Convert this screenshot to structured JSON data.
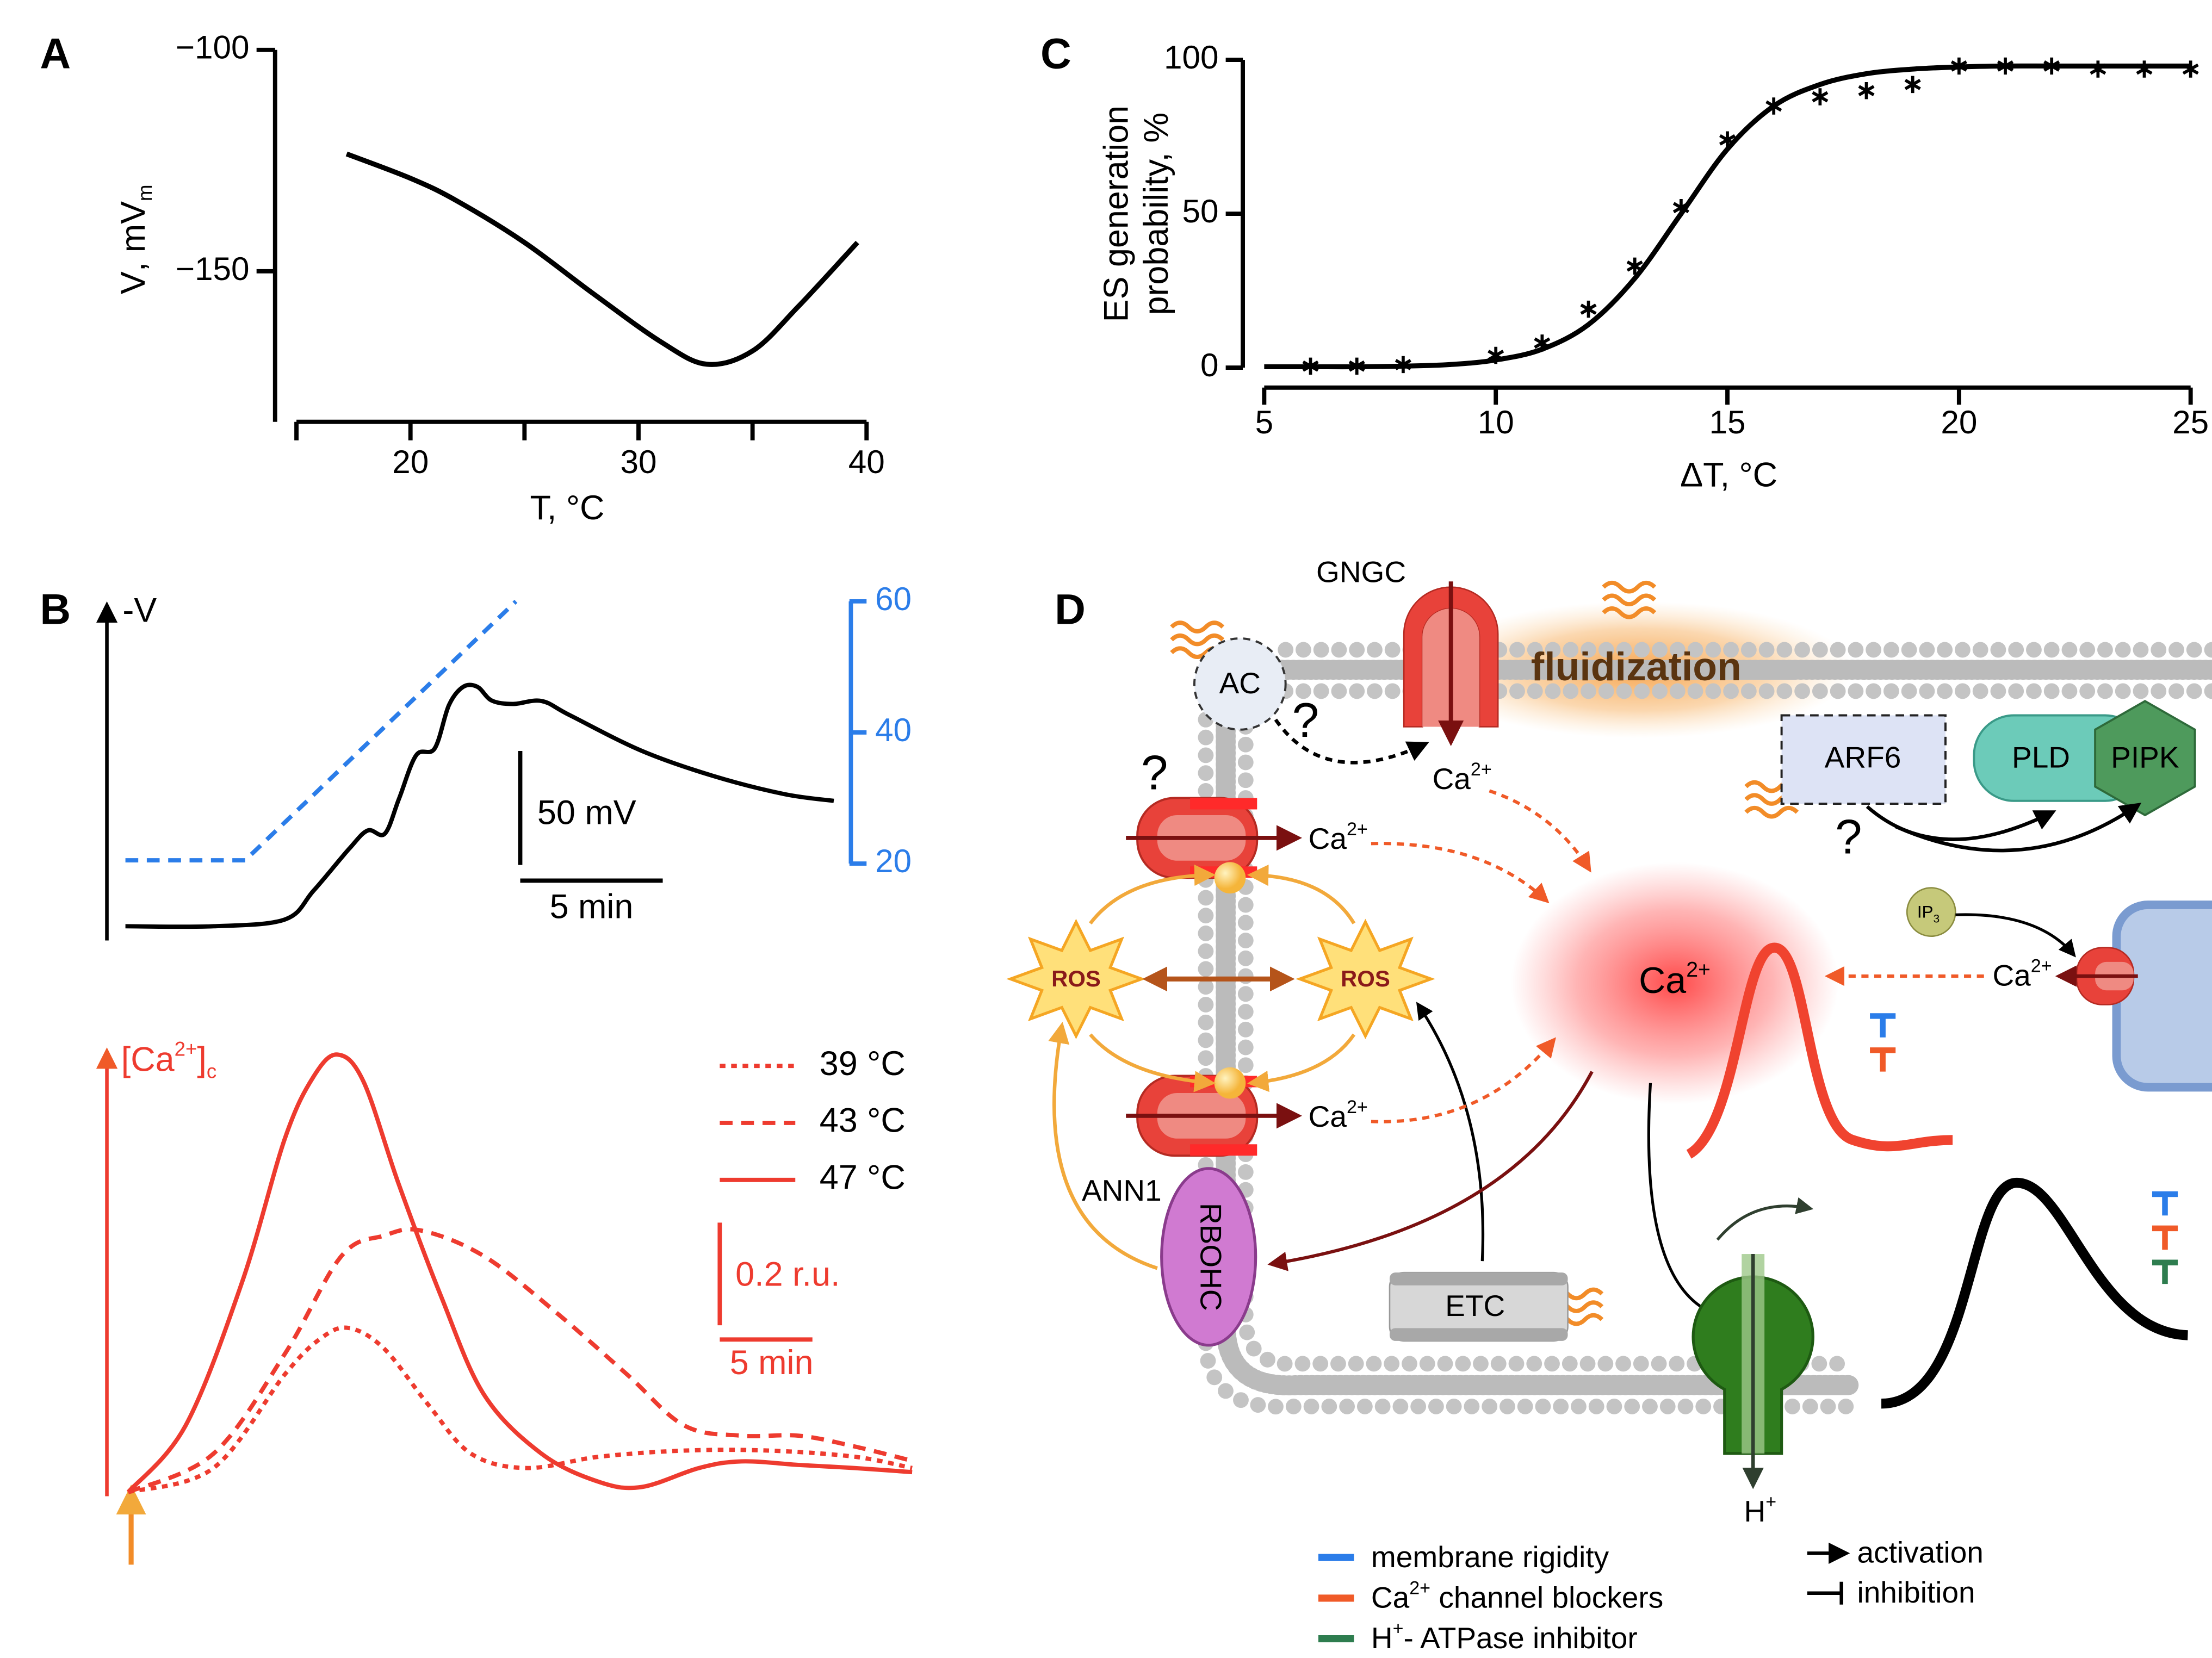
{
  "chart_data": [
    {
      "panel": "A",
      "type": "line",
      "xlabel": "T, °C",
      "ylabel": {
        "base": "V",
        "sub": "m",
        "rest": ", mV"
      },
      "x": [
        17.2,
        20,
        22,
        25,
        28,
        31,
        33,
        35,
        37,
        39.6
      ],
      "values": [
        -123.5,
        -129,
        -134,
        -143.5,
        -155,
        -166,
        -171,
        -168,
        -158,
        -143.5
      ],
      "color": "#000000",
      "xlim": [
        14,
        40
      ],
      "ylim": [
        -184,
        -100
      ],
      "xticks": [
        20,
        30,
        40
      ],
      "xticks_minor": [
        15,
        25,
        35
      ],
      "yticks": [
        {
          "value": -100,
          "label": "−100"
        },
        {
          "value": -150,
          "label": "−150"
        }
      ]
    },
    {
      "panel": "C",
      "type": "scatter",
      "xlabel": "ΔT, °C",
      "ylabel": [
        "ES generation",
        "probability, %"
      ],
      "x": [
        6,
        7,
        8,
        10,
        11,
        12,
        13,
        14,
        15,
        16,
        17,
        18,
        19,
        20,
        21,
        22,
        23,
        24,
        25
      ],
      "values": [
        0.5,
        0.5,
        1,
        4,
        8,
        19,
        33,
        52,
        74,
        85,
        88,
        90,
        92,
        98,
        98,
        98,
        97,
        97,
        97
      ],
      "color": "#000000",
      "fit": {
        "x": [
          5,
          6,
          7,
          8,
          9,
          10,
          11,
          12,
          13,
          14,
          15,
          16,
          17,
          18,
          19,
          20,
          21,
          22,
          23,
          24,
          25
        ],
        "values": [
          0.3,
          0.3,
          0.3,
          0.5,
          1,
          2.5,
          6,
          14,
          29,
          50,
          71,
          85,
          92,
          95.5,
          97,
          97.7,
          98,
          98,
          98,
          98,
          98
        ]
      },
      "xlim": [
        5,
        25
      ],
      "ylim": [
        0,
        100
      ],
      "xticks": [
        5,
        10,
        15,
        20,
        25
      ],
      "yticks": [
        0,
        50,
        100
      ]
    },
    {
      "panel": "B",
      "type": "line",
      "ylabel": "-V",
      "series": [
        {
          "color": "#000000",
          "x": [
            0.65,
            3.75,
            6.25,
            7.25,
            8.5,
            9.15,
            9.75,
            10.25,
            10.85,
            11.5,
            12,
            12.5,
            13,
            13.5,
            14.25,
            15.25,
            16.25,
            18.75,
            21.25,
            23.75,
            25.5
          ],
          "values": [
            0,
            0,
            3,
            15.6,
            34,
            42,
            40.6,
            56,
            75,
            78,
            97,
            105,
            105,
            99,
            97.5,
            98.8,
            92.5,
            77,
            66,
            58,
            55
          ]
        },
        {
          "color": "#2b7de9",
          "dash": "dashed",
          "axis": "y2",
          "x": [
            0.65,
            4.85,
            14.35
          ],
          "values": [
            20.5,
            20.5,
            60
          ]
        }
      ],
      "xlim": [
        0,
        25.5
      ],
      "ylim": [
        -6.25,
        143.75
      ],
      "y2lim": [
        20,
        60
      ],
      "y2ticks": [
        20,
        40,
        60
      ],
      "y2color": "#2b7de9",
      "scale_bars": [
        {
          "label": "50 mV",
          "value": 50,
          "axis": "y"
        },
        {
          "label": "5 min",
          "value": 5,
          "axis": "x"
        }
      ]
    },
    {
      "type": "line",
      "ylabel": {
        "base": "[Ca",
        "sup": "2+",
        "rest": "]",
        "sub": "c"
      },
      "color": "#ee3b2f",
      "series": [
        {
          "name": "39 °C",
          "dash": "dotted",
          "color": "#ee3b2f",
          "x": [
            0,
            4.6,
            8.46,
            10.4,
            11.9,
            13.8,
            16.2,
            18.5,
            21.5,
            25.4,
            30,
            34.6,
            39.2,
            42.3
          ],
          "values": [
            0,
            0.047,
            0.23,
            0.3,
            0.32,
            0.28,
            0.17,
            0.075,
            0.047,
            0.069,
            0.081,
            0.081,
            0.069,
            0.047
          ]
        },
        {
          "name": "43 °C",
          "dash": "dashed",
          "color": "#ee3b2f",
          "x": [
            0,
            4.6,
            8.46,
            11.5,
            13.8,
            15.8,
            19.2,
            23.1,
            26.9,
            30,
            33.1,
            36.2,
            39.2,
            42.3
          ],
          "values": [
            0,
            0.075,
            0.27,
            0.46,
            0.5,
            0.51,
            0.46,
            0.35,
            0.23,
            0.13,
            0.11,
            0.11,
            0.089,
            0.061
          ]
        },
        {
          "name": "47 °C",
          "dash": "solid",
          "color": "#ee3b2f",
          "x": [
            0,
            3.1,
            6.15,
            8.46,
            10,
            11.3,
            12.7,
            14.6,
            16.9,
            19.2,
            22.3,
            25.4,
            27.7,
            30.8,
            33.1,
            36.2,
            39.2,
            42.3
          ],
          "values": [
            0,
            0.13,
            0.41,
            0.69,
            0.81,
            0.853,
            0.8,
            0.6,
            0.38,
            0.19,
            0.075,
            0.02,
            0.01,
            0.047,
            0.06,
            0.053,
            0.047,
            0.039
          ]
        }
      ],
      "xlim": [
        -1.15,
        42.3
      ],
      "ylim": [
        -0.008,
        0.867
      ],
      "scale_bars": [
        {
          "label": "0.2 r.u.",
          "value": 0.2,
          "axis": "y"
        },
        {
          "label": "5 min",
          "value": 5,
          "axis": "x"
        }
      ]
    }
  ],
  "diagram": {
    "panel": "D",
    "gngc": "GNGC",
    "fluidization": "fluidization",
    "ac": "AC",
    "question": "?",
    "arf6": "ARF6",
    "pld": "PLD",
    "pipk": "PIPK",
    "ros": "ROS",
    "ann1": "ANN1",
    "rbohc": "RBOHC",
    "etc": "ETC",
    "ca": {
      "base": "Ca",
      "sup": "2+"
    },
    "ip3": {
      "base": "IP",
      "sub": "3"
    },
    "h": {
      "base": "H",
      "sup": "+"
    },
    "legend": [
      {
        "color": "#2b7de9",
        "text": "membrane rigidity"
      },
      {
        "color": "#f05a28",
        "base": "Ca",
        "sup": "2+",
        "rest": " channel blockers"
      },
      {
        "color": "#2e7d4f",
        "base": "H",
        "sup": "+",
        "rest": "- ATPase inhibitor"
      }
    ],
    "arrow_legend": [
      "activation",
      "inhibition"
    ]
  }
}
